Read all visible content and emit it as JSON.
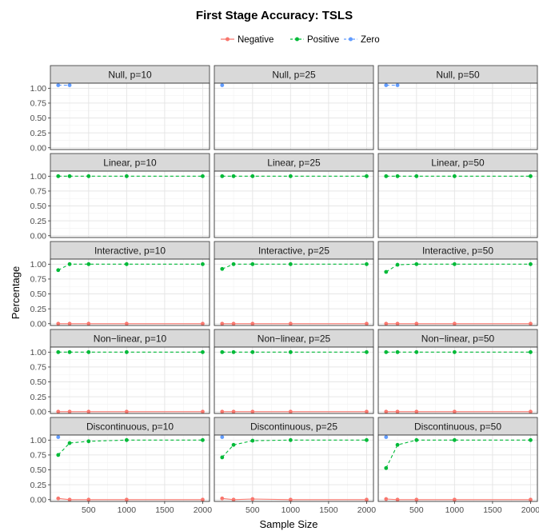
{
  "chart_data": {
    "type": "line",
    "title": "First Stage Accuracy: TSLS",
    "xlabel": "Sample Size",
    "ylabel": "Percentage",
    "xlim": [
      0,
      2000
    ],
    "ylim": [
      0,
      1.05
    ],
    "x_ticks": [
      "500",
      "1000",
      "1500",
      "2000"
    ],
    "y_ticks": [
      "0.00",
      "0.25",
      "0.50",
      "0.75",
      "1.00"
    ],
    "legend": {
      "placement": "top",
      "entries": [
        "Negative",
        "Positive",
        "Zero"
      ]
    },
    "grid": true,
    "series_styles": {
      "Negative": {
        "color": "#F8766D",
        "dash": "solid"
      },
      "Positive": {
        "color": "#00BA38",
        "dash": "dashed"
      },
      "Zero": {
        "color": "#619CFF",
        "dash": "dashed"
      }
    },
    "panels": [
      {
        "label": "Null, p=10",
        "series": [
          {
            "name": "Zero",
            "x": [
              100,
              250
            ],
            "values": [
              1.05,
              1.05
            ]
          }
        ]
      },
      {
        "label": "Null, p=25",
        "series": [
          {
            "name": "Zero",
            "x": [
              100
            ],
            "values": [
              1.05
            ]
          }
        ]
      },
      {
        "label": "Null, p=50",
        "series": [
          {
            "name": "Zero",
            "x": [
              100,
              250
            ],
            "values": [
              1.05,
              1.05
            ]
          }
        ]
      },
      {
        "label": "Linear, p=10",
        "series": [
          {
            "name": "Positive",
            "x": [
              100,
              250,
              500,
              1000,
              2000
            ],
            "values": [
              1.0,
              1.0,
              1.0,
              1.0,
              1.0
            ]
          }
        ]
      },
      {
        "label": "Linear, p=25",
        "series": [
          {
            "name": "Positive",
            "x": [
              100,
              250,
              500,
              1000,
              2000
            ],
            "values": [
              1.0,
              1.0,
              1.0,
              1.0,
              1.0
            ]
          }
        ]
      },
      {
        "label": "Linear, p=50",
        "series": [
          {
            "name": "Positive",
            "x": [
              100,
              250,
              500,
              1000,
              2000
            ],
            "values": [
              1.0,
              1.0,
              1.0,
              1.0,
              1.0
            ]
          }
        ]
      },
      {
        "label": "Interactive, p=10",
        "series": [
          {
            "name": "Negative",
            "x": [
              100,
              250,
              500,
              1000,
              2000
            ],
            "values": [
              0.0,
              0.0,
              0.0,
              0.0,
              0.0
            ]
          },
          {
            "name": "Positive",
            "x": [
              100,
              250,
              500,
              1000,
              2000
            ],
            "values": [
              0.9,
              1.0,
              1.0,
              1.0,
              1.0
            ]
          }
        ]
      },
      {
        "label": "Interactive, p=25",
        "series": [
          {
            "name": "Negative",
            "x": [
              100,
              250,
              500,
              1000,
              2000
            ],
            "values": [
              0.0,
              0.0,
              0.0,
              0.0,
              0.0
            ]
          },
          {
            "name": "Positive",
            "x": [
              100,
              250,
              500,
              1000,
              2000
            ],
            "values": [
              0.92,
              1.0,
              1.0,
              1.0,
              1.0
            ]
          }
        ]
      },
      {
        "label": "Interactive, p=50",
        "series": [
          {
            "name": "Negative",
            "x": [
              100,
              250,
              500,
              1000,
              2000
            ],
            "values": [
              0.0,
              0.0,
              0.0,
              0.0,
              0.0
            ]
          },
          {
            "name": "Positive",
            "x": [
              100,
              250,
              500,
              1000,
              2000
            ],
            "values": [
              0.87,
              0.99,
              1.0,
              1.0,
              1.0
            ]
          }
        ]
      },
      {
        "label": "Non−linear, p=10",
        "series": [
          {
            "name": "Negative",
            "x": [
              100,
              250,
              500,
              1000,
              2000
            ],
            "values": [
              0.0,
              0.0,
              0.0,
              0.0,
              0.0
            ]
          },
          {
            "name": "Positive",
            "x": [
              100,
              250,
              500,
              1000,
              2000
            ],
            "values": [
              1.0,
              1.0,
              1.0,
              1.0,
              1.0
            ]
          }
        ]
      },
      {
        "label": "Non−linear, p=25",
        "series": [
          {
            "name": "Negative",
            "x": [
              100,
              250,
              500,
              1000,
              2000
            ],
            "values": [
              0.0,
              0.0,
              0.0,
              0.0,
              0.0
            ]
          },
          {
            "name": "Positive",
            "x": [
              100,
              250,
              500,
              1000,
              2000
            ],
            "values": [
              1.0,
              1.0,
              1.0,
              1.0,
              1.0
            ]
          }
        ]
      },
      {
        "label": "Non−linear, p=50",
        "series": [
          {
            "name": "Negative",
            "x": [
              100,
              250,
              500,
              1000,
              2000
            ],
            "values": [
              0.0,
              0.0,
              0.0,
              0.0,
              0.0
            ]
          },
          {
            "name": "Positive",
            "x": [
              100,
              250,
              500,
              1000,
              2000
            ],
            "values": [
              1.0,
              1.0,
              1.0,
              1.0,
              1.0
            ]
          }
        ]
      },
      {
        "label": "Discontinuous, p=10",
        "series": [
          {
            "name": "Negative",
            "x": [
              100,
              250,
              500,
              1000,
              2000
            ],
            "values": [
              0.02,
              0.0,
              0.0,
              0.0,
              0.0
            ]
          },
          {
            "name": "Positive",
            "x": [
              100,
              250,
              500,
              1000,
              2000
            ],
            "values": [
              0.75,
              0.95,
              0.98,
              1.0,
              1.0
            ]
          },
          {
            "name": "Zero",
            "x": [
              100
            ],
            "values": [
              1.05
            ]
          }
        ]
      },
      {
        "label": "Discontinuous, p=25",
        "series": [
          {
            "name": "Negative",
            "x": [
              100,
              250,
              500,
              1000,
              2000
            ],
            "values": [
              0.02,
              0.0,
              0.01,
              0.0,
              0.0
            ]
          },
          {
            "name": "Positive",
            "x": [
              100,
              250,
              500,
              1000,
              2000
            ],
            "values": [
              0.71,
              0.92,
              0.99,
              1.0,
              1.0
            ]
          },
          {
            "name": "Zero",
            "x": [
              100
            ],
            "values": [
              1.05
            ]
          }
        ]
      },
      {
        "label": "Discontinuous, p=50",
        "series": [
          {
            "name": "Negative",
            "x": [
              100,
              250,
              500,
              1000,
              2000
            ],
            "values": [
              0.01,
              0.0,
              0.0,
              0.0,
              0.0
            ]
          },
          {
            "name": "Positive",
            "x": [
              100,
              250,
              500,
              1000,
              2000
            ],
            "values": [
              0.53,
              0.92,
              1.0,
              1.0,
              1.0
            ]
          },
          {
            "name": "Zero",
            "x": [
              100
            ],
            "values": [
              1.05
            ]
          }
        ]
      }
    ]
  }
}
